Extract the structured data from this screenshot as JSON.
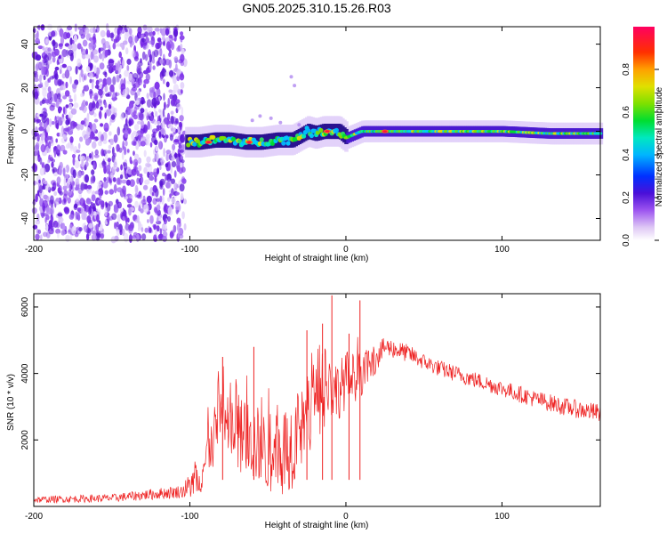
{
  "figure": {
    "title": "GN05.2025.310.15.26.R03"
  },
  "colors": {
    "trace": "#ee2222",
    "axis": "#000000"
  },
  "chart_data": [
    {
      "type": "heatmap",
      "name": "spectrogram",
      "xlabel": "Height of straight line (km)",
      "ylabel": "Frequency (Hz)",
      "xlim": [
        -200,
        163
      ],
      "ylim": [
        -50,
        48
      ],
      "xticks": [
        -200,
        -100,
        0,
        100
      ],
      "xtick_labels": [
        "-200",
        "-100",
        "0",
        "100"
      ],
      "yticks": [
        -40,
        -20,
        0,
        20,
        40
      ],
      "ytick_labels": [
        "-40",
        "-20",
        "0",
        "20",
        "40"
      ],
      "noise_region_x": [
        -200,
        -103
      ],
      "track": {
        "x": [
          -103,
          -95,
          -85,
          -75,
          -65,
          -55,
          -45,
          -35,
          -25,
          -20,
          -15,
          -10,
          -5,
          0,
          10,
          30,
          60,
          100,
          130,
          163
        ],
        "y": [
          -5,
          -5,
          -4,
          -4,
          -5,
          -5,
          -4,
          -4,
          0,
          -1,
          0,
          0,
          0,
          -3,
          0,
          0,
          0,
          0,
          -1,
          -1
        ]
      },
      "hotspots": [
        {
          "x": -88,
          "y": -5
        },
        {
          "x": -62,
          "y": -5
        },
        {
          "x": -12,
          "y": 0
        },
        {
          "x": 25,
          "y": 0
        }
      ]
    },
    {
      "type": "colorbar",
      "name": "amplitude-colorbar",
      "label": "Normalized spectral amplitude",
      "ticks": [
        0.0,
        0.2,
        0.4,
        0.6,
        0.8
      ],
      "tick_labels": [
        "0.0",
        "0.2",
        "0.4",
        "0.6",
        "0.8"
      ],
      "range": [
        0,
        1
      ]
    },
    {
      "type": "line",
      "name": "snr",
      "xlabel": "Height of straight line (km)",
      "ylabel": "SNR (10 * v/v)",
      "xlim": [
        -200,
        163
      ],
      "ylim": [
        0,
        6400
      ],
      "xticks": [
        -200,
        -100,
        0,
        100
      ],
      "xtick_labels": [
        "-200",
        "-100",
        "0",
        "100"
      ],
      "yticks": [
        2000,
        4000,
        6000
      ],
      "ytick_labels": [
        "2000",
        "4000",
        "6000"
      ],
      "envelope": {
        "x": [
          -200,
          -150,
          -105,
          -95,
          -85,
          -80,
          -75,
          -70,
          -65,
          -60,
          -55,
          -50,
          -45,
          -40,
          -35,
          -30,
          -25,
          -20,
          -15,
          -10,
          -5,
          0,
          5,
          10,
          15,
          20,
          25,
          30,
          40,
          50,
          60,
          80,
          100,
          120,
          140,
          163
        ],
        "y": [
          200,
          250,
          450,
          800,
          1900,
          2600,
          2300,
          2000,
          2200,
          1900,
          1800,
          1500,
          1600,
          1700,
          1900,
          2100,
          2600,
          3000,
          3300,
          3600,
          3500,
          3800,
          3900,
          4000,
          4200,
          4500,
          4800,
          4750,
          4600,
          4350,
          4150,
          3850,
          3550,
          3250,
          3000,
          2800
        ]
      },
      "noise": {
        "x": [
          -200,
          -150,
          -105,
          -95,
          -85,
          -75,
          -65,
          -55,
          -45,
          -35,
          -25,
          -15,
          -5,
          5,
          15,
          25,
          50,
          100,
          163
        ],
        "y": [
          100,
          120,
          200,
          600,
          1000,
          1100,
          1200,
          1200,
          1300,
          1400,
          1300,
          1100,
          900,
          800,
          500,
          300,
          250,
          250,
          280
        ]
      },
      "spikes": [
        {
          "x": -79,
          "y": 4500
        },
        {
          "x": -59,
          "y": 4800
        },
        {
          "x": -25,
          "y": 5300
        },
        {
          "x": -15,
          "y": 5500
        },
        {
          "x": -9,
          "y": 6350
        },
        {
          "x": 9,
          "y": 6200
        },
        {
          "x": 2,
          "y": 5200
        }
      ]
    }
  ]
}
